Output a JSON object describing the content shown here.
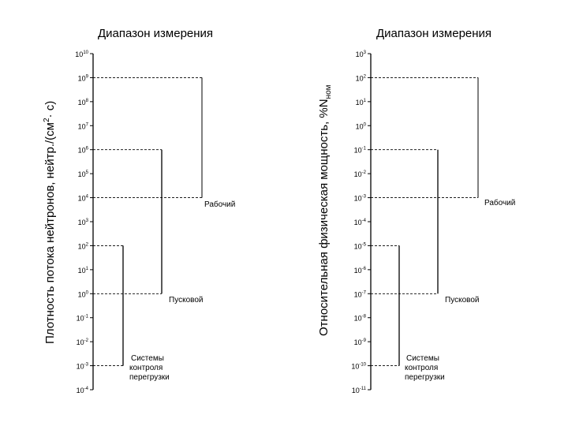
{
  "panels": [
    {
      "title": "Диапазон измерения",
      "ylabel_main": "Плотность потока нейтронов, нейтр./(см",
      "ylabel_sup": "2",
      "ylabel_end": "· с)",
      "ticks": [
        {
          "base": "10",
          "exp": "10"
        },
        {
          "base": "10",
          "exp": "9"
        },
        {
          "base": "10",
          "exp": "8"
        },
        {
          "base": "10",
          "exp": "7"
        },
        {
          "base": "10",
          "exp": "6"
        },
        {
          "base": "10",
          "exp": "5"
        },
        {
          "base": "10",
          "exp": "4"
        },
        {
          "base": "10",
          "exp": "3"
        },
        {
          "base": "10",
          "exp": "2"
        },
        {
          "base": "10",
          "exp": "1"
        },
        {
          "base": "10",
          "exp": "0"
        },
        {
          "base": "10",
          "exp": "-1"
        },
        {
          "base": "10",
          "exp": "-2"
        },
        {
          "base": "10",
          "exp": "-3"
        },
        {
          "base": "10",
          "exp": "-4"
        }
      ],
      "ranges": [
        {
          "from_exp": 4,
          "to_exp": 9,
          "label_lines": [
            "Рабочий"
          ]
        },
        {
          "from_exp": 0,
          "to_exp": 6,
          "label_lines": [
            "Пусковой"
          ]
        },
        {
          "from_exp": -3,
          "to_exp": 2,
          "label_lines": [
            "Системы",
            "контроля",
            "перегрузки"
          ]
        }
      ]
    },
    {
      "title": "Диапазон измерения",
      "ylabel_main": "Относительная физическая мощность, %N",
      "ylabel_sub": "ном",
      "ticks": [
        {
          "base": "10",
          "exp": "3"
        },
        {
          "base": "10",
          "exp": "2"
        },
        {
          "base": "10",
          "exp": "1"
        },
        {
          "base": "10",
          "exp": "0"
        },
        {
          "base": "10",
          "exp": "-1"
        },
        {
          "base": "10",
          "exp": "-2"
        },
        {
          "base": "10",
          "exp": "-3"
        },
        {
          "base": "10",
          "exp": "-4"
        },
        {
          "base": "10",
          "exp": "-5"
        },
        {
          "base": "10",
          "exp": "-6"
        },
        {
          "base": "10",
          "exp": "-7"
        },
        {
          "base": "10",
          "exp": "-8"
        },
        {
          "base": "10",
          "exp": "-9"
        },
        {
          "base": "10",
          "exp": "-10"
        },
        {
          "base": "10",
          "exp": "-11"
        }
      ],
      "ranges": [
        {
          "from_exp": -3,
          "to_exp": 2,
          "label_lines": [
            "Рабочий"
          ]
        },
        {
          "from_exp": -7,
          "to_exp": -1,
          "label_lines": [
            "Пусковой"
          ]
        },
        {
          "from_exp": -10,
          "to_exp": -5,
          "label_lines": [
            "Системы",
            "контроля",
            "перегрузки"
          ]
        }
      ]
    }
  ]
}
